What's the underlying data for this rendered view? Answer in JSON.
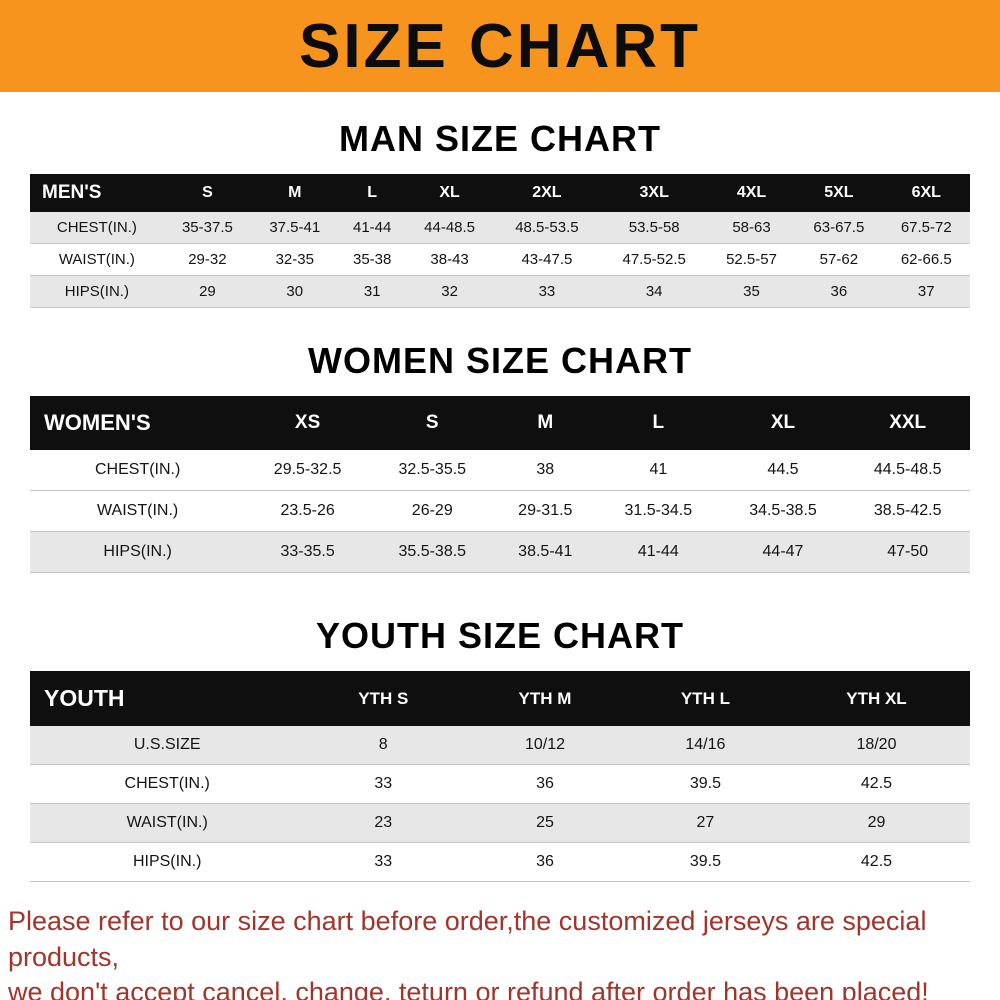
{
  "banner": {
    "title": "SIZE CHART",
    "bg_color": "#f7941e"
  },
  "sections": [
    {
      "heading": "MAN SIZE CHART",
      "label": "MEN'S",
      "columns": [
        "S",
        "M",
        "L",
        "XL",
        "2XL",
        "3XL",
        "4XL",
        "5XL",
        "6XL"
      ],
      "rows": [
        {
          "label": "CHEST(IN.)",
          "values": [
            "35-37.5",
            "37.5-41",
            "41-44",
            "44-48.5",
            "48.5-53.5",
            "53.5-58",
            "58-63",
            "63-67.5",
            "67.5-72"
          ]
        },
        {
          "label": "WAIST(IN.)",
          "values": [
            "29-32",
            "32-35",
            "35-38",
            "38-43",
            "43-47.5",
            "47.5-52.5",
            "52.5-57",
            "57-62",
            "62-66.5"
          ]
        },
        {
          "label": "HIPS(IN.)",
          "values": [
            "29",
            "30",
            "31",
            "32",
            "33",
            "34",
            "35",
            "36",
            "37"
          ]
        }
      ]
    },
    {
      "heading": "WOMEN SIZE CHART",
      "label": "WOMEN'S",
      "columns": [
        "XS",
        "S",
        "M",
        "L",
        "XL",
        "XXL"
      ],
      "rows": [
        {
          "label": "CHEST(IN.)",
          "values": [
            "29.5-32.5",
            "32.5-35.5",
            "38",
            "41",
            "44.5",
            "44.5-48.5"
          ]
        },
        {
          "label": "WAIST(IN.)",
          "values": [
            "23.5-26",
            "26-29",
            "29-31.5",
            "31.5-34.5",
            "34.5-38.5",
            "38.5-42.5"
          ]
        },
        {
          "label": "HIPS(IN.)",
          "values": [
            "33-35.5",
            "35.5-38.5",
            "38.5-41",
            "41-44",
            "44-47",
            "47-50"
          ]
        }
      ]
    },
    {
      "heading": "YOUTH SIZE CHART",
      "label": "YOUTH",
      "columns": [
        "YTH S",
        "YTH M",
        "YTH L",
        "YTH XL"
      ],
      "rows": [
        {
          "label": "U.S.SIZE",
          "values": [
            "8",
            "10/12",
            "14/16",
            "18/20"
          ]
        },
        {
          "label": "CHEST(IN.)",
          "values": [
            "33",
            "36",
            "39.5",
            "42.5"
          ]
        },
        {
          "label": "WAIST(IN.)",
          "values": [
            "23",
            "25",
            "27",
            "29"
          ]
        },
        {
          "label": "HIPS(IN.)",
          "values": [
            "33",
            "36",
            "39.5",
            "42.5"
          ]
        }
      ]
    }
  ],
  "footer": {
    "line1": "Please refer to our size chart before order,the customized jerseys are special products,",
    "line2": "we don't accept cancel, change, teturn or refund after order has been placed!",
    "text_color": "#a2342a"
  }
}
